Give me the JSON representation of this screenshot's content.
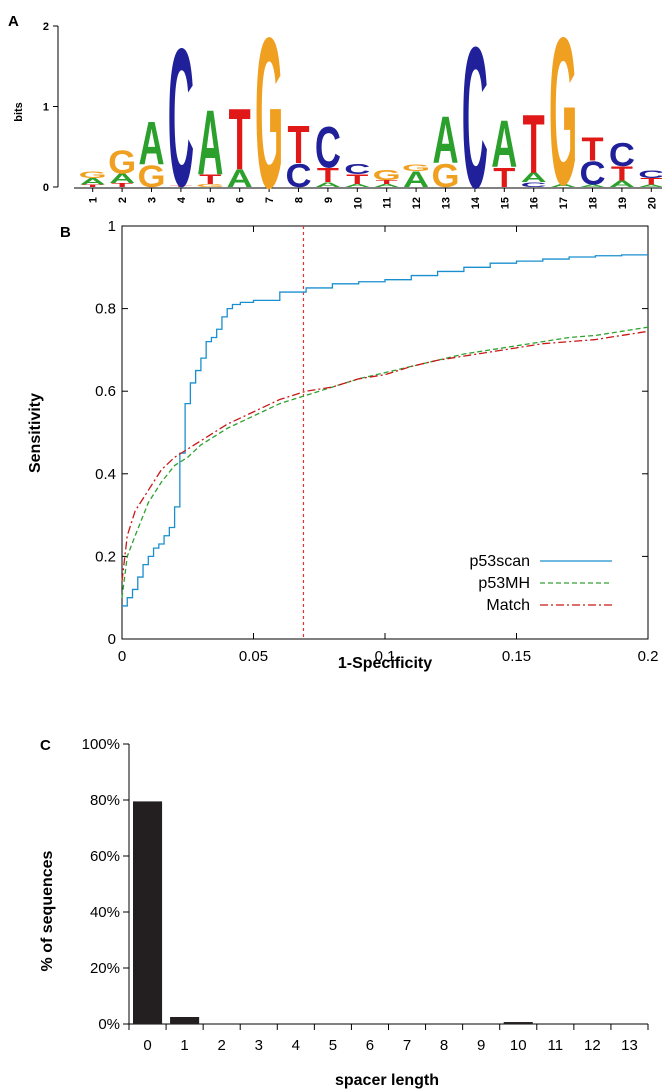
{
  "chart_data": [
    {
      "panel": "A",
      "type": "sequence-logo",
      "ylabel": "bits",
      "ylim": [
        0,
        2
      ],
      "yticks": [
        "0",
        "1",
        "2"
      ],
      "positions": [
        "1",
        "2",
        "3",
        "4",
        "5",
        "6",
        "7",
        "8",
        "9",
        "10",
        "11",
        "12",
        "13",
        "14",
        "15",
        "16",
        "17",
        "18",
        "19",
        "20"
      ],
      "columns": [
        [
          {
            "l": "T",
            "h": 0.03
          },
          {
            "l": "A",
            "h": 0.08
          },
          {
            "l": "G",
            "h": 0.08
          }
        ],
        [
          {
            "l": "T",
            "h": 0.05
          },
          {
            "l": "A",
            "h": 0.12
          },
          {
            "l": "G",
            "h": 0.3
          }
        ],
        [
          {
            "l": "G",
            "h": 0.28
          },
          {
            "l": "A",
            "h": 0.55
          }
        ],
        [
          {
            "l": "T",
            "h": 0.02
          },
          {
            "l": "C",
            "h": 1.76
          }
        ],
        [
          {
            "l": "G",
            "h": 0.04
          },
          {
            "l": "T",
            "h": 0.12
          },
          {
            "l": "A",
            "h": 0.82
          }
        ],
        [
          {
            "l": "A",
            "h": 0.22
          },
          {
            "l": "T",
            "h": 0.78
          }
        ],
        [
          {
            "l": "G",
            "h": 1.92
          }
        ],
        [
          {
            "l": "C",
            "h": 0.3
          },
          {
            "l": "T",
            "h": 0.48
          }
        ],
        [
          {
            "l": "A",
            "h": 0.06
          },
          {
            "l": "T",
            "h": 0.18
          },
          {
            "l": "C",
            "h": 0.52
          }
        ],
        [
          {
            "l": "A",
            "h": 0.04
          },
          {
            "l": "T",
            "h": 0.12
          },
          {
            "l": "C",
            "h": 0.13
          }
        ],
        [
          {
            "l": "A",
            "h": 0.04
          },
          {
            "l": "T",
            "h": 0.05
          },
          {
            "l": "G",
            "h": 0.13
          }
        ],
        [
          {
            "l": "A",
            "h": 0.2
          },
          {
            "l": "G",
            "h": 0.08
          }
        ],
        [
          {
            "l": "G",
            "h": 0.3
          },
          {
            "l": "A",
            "h": 0.6
          }
        ],
        [
          {
            "l": "C",
            "h": 1.8
          }
        ],
        [
          {
            "l": "T",
            "h": 0.25
          },
          {
            "l": "A",
            "h": 0.6
          }
        ],
        [
          {
            "l": "C",
            "h": 0.06
          },
          {
            "l": "A",
            "h": 0.12
          },
          {
            "l": "T",
            "h": 0.75
          }
        ],
        [
          {
            "l": "A",
            "h": 0.04
          },
          {
            "l": "G",
            "h": 1.88
          }
        ],
        [
          {
            "l": "A",
            "h": 0.03
          },
          {
            "l": "C",
            "h": 0.3
          },
          {
            "l": "T",
            "h": 0.3
          }
        ],
        [
          {
            "l": "A",
            "h": 0.08
          },
          {
            "l": "T",
            "h": 0.18
          },
          {
            "l": "C",
            "h": 0.3
          }
        ],
        [
          {
            "l": "A",
            "h": 0.03
          },
          {
            "l": "T",
            "h": 0.08
          },
          {
            "l": "C",
            "h": 0.1
          }
        ]
      ],
      "letter_colors": {
        "A": "#2ca02c",
        "C": "#20209a",
        "G": "#f0a020",
        "T": "#e01818"
      }
    },
    {
      "panel": "B",
      "type": "line",
      "xlabel": "1-Specificity",
      "ylabel": "Sensitivity",
      "xlim": [
        0,
        0.2
      ],
      "ylim": [
        0,
        1
      ],
      "xticks": [
        "0",
        "0.05",
        "0.1",
        "0.15",
        "0.2"
      ],
      "yticks": [
        "0",
        "0.2",
        "0.4",
        "0.6",
        "0.8",
        "1"
      ],
      "threshold_line": {
        "x": 0.069,
        "color": "#e8302a"
      },
      "legend_position": "bottom-right",
      "series": [
        {
          "name": "p53scan",
          "color": "#1a8fcf",
          "style": "step",
          "x": [
            0,
            0.002,
            0.004,
            0.006,
            0.008,
            0.01,
            0.012,
            0.014,
            0.016,
            0.018,
            0.02,
            0.022,
            0.024,
            0.026,
            0.028,
            0.03,
            0.032,
            0.034,
            0.036,
            0.038,
            0.04,
            0.042,
            0.045,
            0.05,
            0.06,
            0.07,
            0.08,
            0.09,
            0.1,
            0.11,
            0.12,
            0.13,
            0.14,
            0.15,
            0.16,
            0.17,
            0.18,
            0.19,
            0.2
          ],
          "y": [
            0.08,
            0.1,
            0.12,
            0.15,
            0.18,
            0.2,
            0.22,
            0.23,
            0.25,
            0.27,
            0.32,
            0.45,
            0.57,
            0.62,
            0.65,
            0.68,
            0.72,
            0.73,
            0.75,
            0.78,
            0.8,
            0.81,
            0.815,
            0.82,
            0.84,
            0.85,
            0.86,
            0.865,
            0.87,
            0.88,
            0.89,
            0.9,
            0.91,
            0.915,
            0.92,
            0.925,
            0.928,
            0.93,
            0.93
          ]
        },
        {
          "name": "p53MH",
          "color": "#30a030",
          "style": "dashed",
          "x": [
            0,
            0.002,
            0.005,
            0.01,
            0.015,
            0.02,
            0.025,
            0.03,
            0.04,
            0.05,
            0.06,
            0.07,
            0.08,
            0.09,
            0.1,
            0.11,
            0.12,
            0.13,
            0.14,
            0.15,
            0.16,
            0.17,
            0.18,
            0.19,
            0.2
          ],
          "y": [
            0.1,
            0.2,
            0.25,
            0.33,
            0.38,
            0.42,
            0.44,
            0.47,
            0.51,
            0.54,
            0.57,
            0.59,
            0.61,
            0.63,
            0.645,
            0.66,
            0.675,
            0.69,
            0.7,
            0.71,
            0.72,
            0.73,
            0.735,
            0.745,
            0.755
          ]
        },
        {
          "name": "Match",
          "color": "#c81818",
          "style": "dashdot",
          "x": [
            0,
            0.002,
            0.005,
            0.01,
            0.015,
            0.02,
            0.025,
            0.03,
            0.04,
            0.05,
            0.06,
            0.07,
            0.08,
            0.09,
            0.1,
            0.11,
            0.12,
            0.13,
            0.14,
            0.15,
            0.16,
            0.17,
            0.18,
            0.19,
            0.2
          ],
          "y": [
            0.14,
            0.25,
            0.31,
            0.36,
            0.41,
            0.44,
            0.46,
            0.48,
            0.52,
            0.55,
            0.58,
            0.6,
            0.61,
            0.63,
            0.64,
            0.66,
            0.675,
            0.685,
            0.695,
            0.705,
            0.715,
            0.72,
            0.725,
            0.735,
            0.745
          ]
        }
      ]
    },
    {
      "panel": "C",
      "type": "bar",
      "xlabel": "spacer length",
      "ylabel": "% of sequences",
      "ylim": [
        0,
        100
      ],
      "yticks": [
        "0%",
        "20%",
        "40%",
        "60%",
        "80%",
        "100%"
      ],
      "categories": [
        "0",
        "1",
        "2",
        "3",
        "4",
        "5",
        "6",
        "7",
        "8",
        "9",
        "10",
        "11",
        "12",
        "13"
      ],
      "values": [
        79.5,
        2.5,
        0,
        0,
        0,
        0,
        0,
        0,
        0,
        0,
        0.7,
        0,
        0,
        0
      ],
      "bar_color": "#231f20"
    }
  ]
}
